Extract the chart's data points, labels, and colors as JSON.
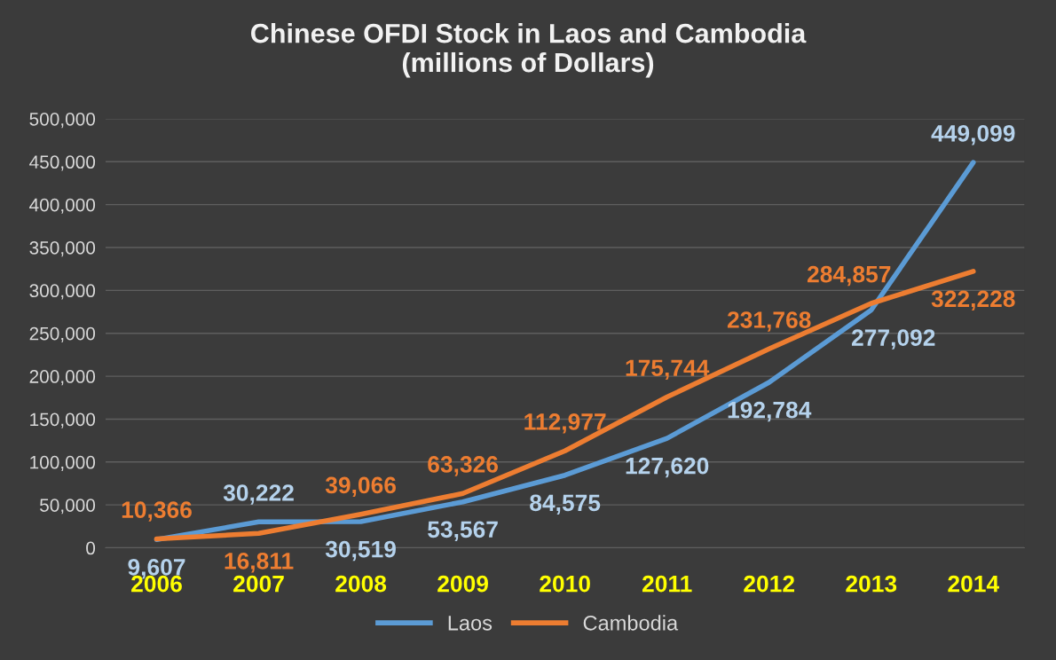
{
  "chart_data": {
    "type": "line",
    "title": "Chinese OFDI Stock in Laos and Cambodia\n(millions of Dollars)",
    "categories": [
      "2006",
      "2007",
      "2008",
      "2009",
      "2010",
      "2011",
      "2012",
      "2013",
      "2014"
    ],
    "series": [
      {
        "name": "Laos",
        "color": "#5b9bd5",
        "values": [
          9607,
          30222,
          30519,
          53567,
          84575,
          127620,
          192784,
          277092,
          449099
        ],
        "value_labels": [
          "9,607",
          "30,222",
          "30,519",
          "53,567",
          "84,575",
          "127,620",
          "192,784",
          "277,092",
          "449,099"
        ]
      },
      {
        "name": "Cambodia",
        "color": "#ed7d31",
        "values": [
          10366,
          16811,
          39066,
          63326,
          112977,
          175744,
          231768,
          284857,
          322228
        ],
        "value_labels": [
          "10,366",
          "16,811",
          "39,066",
          "63,326",
          "112,977",
          "175,744",
          "231,768",
          "284,857",
          "322,228"
        ]
      }
    ],
    "ylim": [
      0,
      500000
    ],
    "yticks": [
      {
        "value": 0,
        "label": "0"
      },
      {
        "value": 50000,
        "label": "50,000"
      },
      {
        "value": 100000,
        "label": "100,000"
      },
      {
        "value": 150000,
        "label": "150,000"
      },
      {
        "value": 200000,
        "label": "200,000"
      },
      {
        "value": 250000,
        "label": "250,000"
      },
      {
        "value": 300000,
        "label": "300,000"
      },
      {
        "value": 350000,
        "label": "350,000"
      },
      {
        "value": 400000,
        "label": "400,000"
      },
      {
        "value": 450000,
        "label": "450,000"
      },
      {
        "value": 500000,
        "label": "500,000"
      }
    ],
    "grid": "y",
    "legend": "bottom",
    "marker": "none",
    "line_style": "solid"
  }
}
